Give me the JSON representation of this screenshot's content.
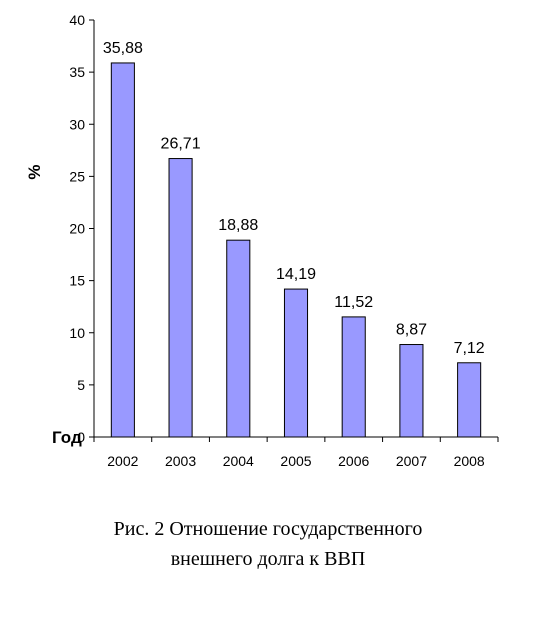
{
  "chart_data": {
    "type": "bar",
    "categories": [
      "2002",
      "2003",
      "2004",
      "2005",
      "2006",
      "2007",
      "2008"
    ],
    "values": [
      35.88,
      26.71,
      18.88,
      14.19,
      11.52,
      8.87,
      7.12
    ],
    "data_labels": [
      "35,88",
      "26,71",
      "18,88",
      "14,19",
      "11,52",
      "8,87",
      "7,12"
    ],
    "ylabel": "%",
    "xlabel": "Год",
    "ylim": [
      0,
      40
    ],
    "yticks": [
      0,
      5,
      10,
      15,
      20,
      25,
      30,
      35,
      40
    ],
    "grid": false,
    "bar_color": "#9999ff",
    "bar_stroke": "#000000"
  },
  "caption": {
    "line1": "Рис. 2  Отношение государственного",
    "line2": "внешнего долга к ВВП"
  }
}
